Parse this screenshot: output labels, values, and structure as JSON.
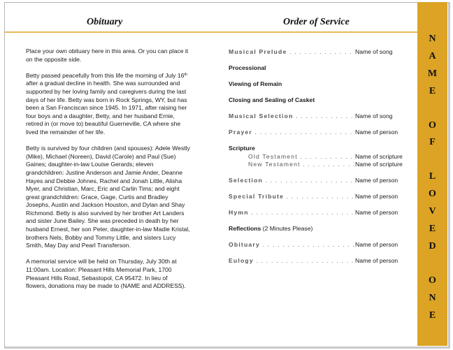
{
  "left": {
    "title": "Obituary",
    "paragraphs": [
      [
        "Place your own obituary here in this area. Or you can place it",
        "on the opposite side."
      ],
      [
        "Betty passed peacefully from this life the morning of July 16",
        "after a gradual decline in health.  She was surrounded and",
        "supported by her loving family and caregivers during the last",
        "days of her life.  Betty was born in Rock Springs, WY, but has",
        "been a San Franciscan since 1945.  In 1971, after raising her",
        "four boys and a daughter, Betty, and her husband Ernie,",
        "retired in (or move to) beautiful Guerneville, CA where she",
        "lived the remainder of her life."
      ],
      [
        "Betty is survived by four children (and spouses): Adele Westly",
        "(Mike), Michael (Noreen), David (Carole) and Paul (Sue)",
        "Gaines;  daughter-in-law Louise Gerards;  eleven",
        "grandchildren: Justine Anderson and Jamie Ander, Deanne",
        "Hayes and Debbie Johnes, Rachel and Jonah Little, Alisha",
        "Myer, and Christian, Marc, Eric and Carlin Tims;  and eight",
        "great grandchildren: Grace, Gage, Curtis and Bradley",
        "Josephs, Austin and Jackson Houston, and Dylan and Shay",
        "Richmond.  Betty is also survived by her brother Art Landers",
        "and sister June Bailey.  She was preceded in death by her",
        "husband Ernest, her son Peter, daughter-in-law Madie Kristal,",
        "brothers Nels, Bobby and Tommy Little, and sisters Lucy",
        "Smith, May Day and Pearl Transferson."
      ],
      [
        "A memorial service will be held on Thursday, July 30th at",
        "11:00am.  Location:  Pleasant Hills Memorial Park, 1700",
        "Pleasant Hills Road, Sebastopol, CA 95472.  In lieu of",
        "flowers, donations may be made to (NAME and ADDRESS)."
      ]
    ],
    "superscript": "th"
  },
  "right": {
    "title": "Order of Service",
    "items": [
      {
        "label": "Musical Prelude",
        "value": "Name of song"
      },
      {
        "label": "Processional",
        "value": ""
      },
      {
        "label": "Viewing of Remain",
        "value": ""
      },
      {
        "label": "Closing and Sealing of Casket",
        "value": ""
      },
      {
        "label": "Musical Selection",
        "value": "Name of song"
      },
      {
        "label": "Prayer",
        "value": "Name of person"
      },
      {
        "label": "Scripture",
        "value": ""
      },
      {
        "label": "Old Testament",
        "value": "Name of scripture"
      },
      {
        "label": "New Testament",
        "value": "Name of scripture"
      },
      {
        "label": "Selection",
        "value": "Name of person"
      },
      {
        "label": "Special Tribute",
        "value": "Name of person"
      },
      {
        "label": "Hymn",
        "value": "Name of person"
      },
      {
        "label": "Reflections",
        "note": "(2 Minutes Please)",
        "value": ""
      },
      {
        "label": "Obituary",
        "value": "Name of person"
      },
      {
        "label": "Eulogy",
        "value": "Name of person"
      }
    ]
  },
  "sidebar": {
    "text": "NAME OF LOVED ONE",
    "color": "#dca325"
  }
}
